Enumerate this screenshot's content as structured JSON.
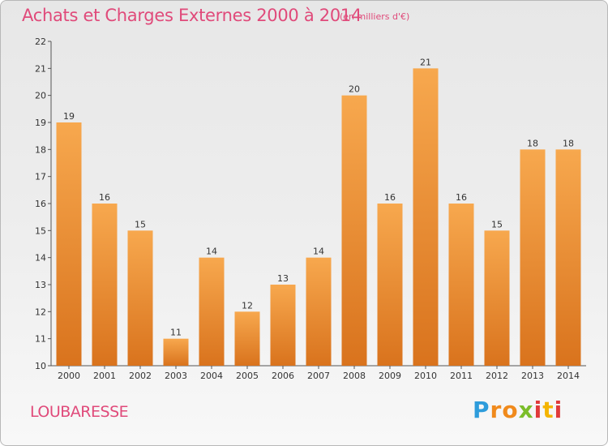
{
  "header": {
    "title": "Achats et Charges Externes 2000 à 2014",
    "unit_note": "(en milliers d'€)"
  },
  "footer": {
    "commune": "LOUBARESSE",
    "logo_text": "Proxiti"
  },
  "colors": {
    "bar_top": "#f7a84e",
    "bar_bottom": "#d9731d",
    "title": "#e04a7a",
    "logo": [
      "#2e9cdb",
      "#f08a1c",
      "#f08a1c",
      "#7bbd2a",
      "#e03a3a",
      "#f4b400",
      "#e03a3a"
    ]
  },
  "chart_data": {
    "type": "bar",
    "title": "Achats et Charges Externes 2000 à 2014",
    "subtitle": "(en milliers d'€)",
    "xlabel": "",
    "ylabel": "",
    "categories": [
      "2000",
      "2001",
      "2002",
      "2003",
      "2004",
      "2005",
      "2006",
      "2007",
      "2008",
      "2009",
      "2010",
      "2011",
      "2012",
      "2013",
      "2014"
    ],
    "values": [
      19,
      16,
      15,
      11,
      14,
      12,
      13,
      14,
      20,
      16,
      21,
      16,
      15,
      18,
      18
    ],
    "ylim": [
      10,
      22
    ],
    "yticks": [
      10,
      11,
      12,
      13,
      14,
      15,
      16,
      17,
      18,
      19,
      20,
      21,
      22
    ],
    "grid": false,
    "legend": "none"
  }
}
